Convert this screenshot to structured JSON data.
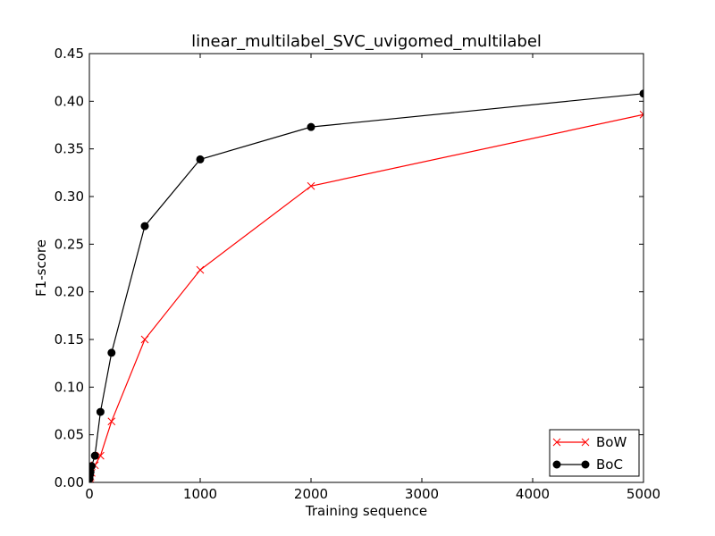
{
  "chart_data": {
    "type": "line",
    "title": "linear_multilabel_SVC_uvigomed_multilabel",
    "xlabel": "Training sequence",
    "ylabel": "F1-score",
    "xlim": [
      0,
      5000
    ],
    "ylim": [
      0,
      0.45
    ],
    "xticks": [
      0,
      1000,
      2000,
      3000,
      4000,
      5000
    ],
    "xtick_labels": [
      "0",
      "1000",
      "2000",
      "3000",
      "4000",
      "5000"
    ],
    "yticks": [
      0,
      0.05,
      0.1,
      0.15,
      0.2,
      0.25,
      0.3,
      0.35,
      0.4,
      0.45
    ],
    "ytick_labels": [
      "0.00",
      "0.05",
      "0.10",
      "0.15",
      "0.20",
      "0.25",
      "0.30",
      "0.35",
      "0.40",
      "0.45"
    ],
    "grid": false,
    "legend_position": "bottom-right",
    "series": [
      {
        "name": "BoW",
        "color": "#ff0000",
        "marker": "x",
        "x": [
          1,
          5,
          10,
          20,
          50,
          100,
          200,
          500,
          1000,
          2000,
          5000
        ],
        "y": [
          0.002,
          0.004,
          0.006,
          0.01,
          0.018,
          0.028,
          0.064,
          0.15,
          0.223,
          0.311,
          0.386
        ]
      },
      {
        "name": "BoC",
        "color": "#000000",
        "marker": "o",
        "x": [
          1,
          5,
          10,
          20,
          50,
          100,
          200,
          500,
          1000,
          2000,
          5000
        ],
        "y": [
          0.004,
          0.008,
          0.011,
          0.017,
          0.028,
          0.074,
          0.136,
          0.269,
          0.339,
          0.373,
          0.408
        ]
      }
    ]
  }
}
